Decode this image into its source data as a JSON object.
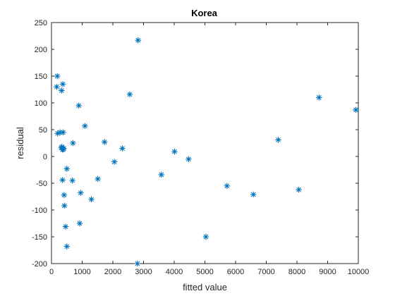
{
  "chart_data": {
    "type": "scatter",
    "title": "Korea",
    "xlabel": "fitted value",
    "ylabel": "residual",
    "xlim": [
      0,
      10000
    ],
    "ylim": [
      -200,
      250
    ],
    "xticks": [
      "0",
      "1000",
      "2000",
      "3000",
      "4000",
      "5000",
      "6000",
      "7000",
      "8000",
      "9000",
      "10000"
    ],
    "yticks": [
      "-200",
      "-150",
      "-100",
      "-50",
      "0",
      "50",
      "100",
      "150",
      "200",
      "250"
    ],
    "grid": false,
    "marker": "asterisk",
    "marker_color": "#0072BD",
    "series": [
      {
        "x": [
          190,
          170,
          370,
          330,
          200,
          280,
          380,
          340,
          360,
          380,
          890,
          1090,
          700,
          320,
          400,
          500,
          1730,
          2310,
          360,
          680,
          1510,
          2050,
          410,
          950,
          420,
          1300,
          460,
          920,
          500,
          2820,
          2550,
          2800,
          3580,
          4010,
          4470,
          5030,
          5720,
          6580,
          7390,
          8060,
          8720,
          9920
        ],
        "y": [
          150,
          130,
          135,
          123,
          43,
          45,
          45,
          18,
          13,
          13,
          95,
          57,
          25,
          16,
          15,
          -23,
          27,
          15,
          -44,
          -45,
          -42,
          -10,
          -72,
          -68,
          -92,
          -80,
          -131,
          -125,
          -168,
          217,
          116,
          -200,
          -34,
          9,
          -5,
          -150,
          -55,
          -71,
          31,
          -62,
          110,
          87
        ]
      }
    ]
  }
}
